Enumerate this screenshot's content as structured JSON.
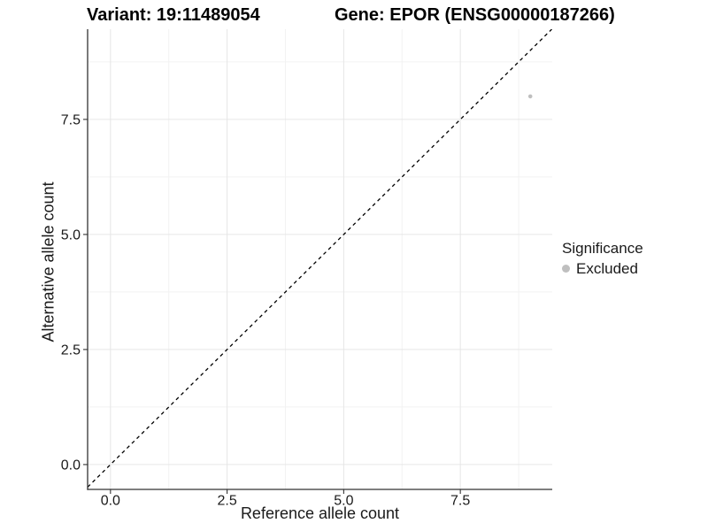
{
  "titles": {
    "left": "Variant: 19:11489054",
    "right": "Gene: EPOR (ENSG00000187266)"
  },
  "chart_data": {
    "type": "scatter",
    "title_left": "Variant: 19:11489054",
    "title_right": "Gene: EPOR (ENSG00000187266)",
    "xlabel": "Reference allele count",
    "ylabel": "Alternative allele count",
    "xlim": [
      -0.49,
      9.47
    ],
    "ylim": [
      -0.54,
      9.46
    ],
    "xticks": {
      "values": [
        0,
        2.5,
        5,
        7.5
      ],
      "labels": [
        "0.0",
        "2.5",
        "5.0",
        "7.5"
      ]
    },
    "yticks": {
      "values": [
        0,
        2.5,
        5,
        7.5
      ],
      "labels": [
        "0.0",
        "2.5",
        "5.0",
        "7.5"
      ]
    },
    "minor_ticks": [
      1.25,
      3.75,
      6.25,
      8.75
    ],
    "grid": "major+minor",
    "points": [
      {
        "x": 9,
        "y": 8,
        "series": "Excluded"
      }
    ],
    "point_radius": 2.3,
    "reference_line": {
      "type": "identity",
      "style": "dashed",
      "color": "#000000"
    },
    "colors": {
      "excluded": "#bfbfbf",
      "grid_major": "#e6e6e6",
      "grid_minor": "#f2f2f2",
      "axis_line": "#333333",
      "tick_text": "#1a1a1a"
    },
    "legend": {
      "title": "Significance",
      "position": "right",
      "items": [
        {
          "label": "Excluded",
          "color": "#bfbfbf"
        }
      ]
    }
  }
}
